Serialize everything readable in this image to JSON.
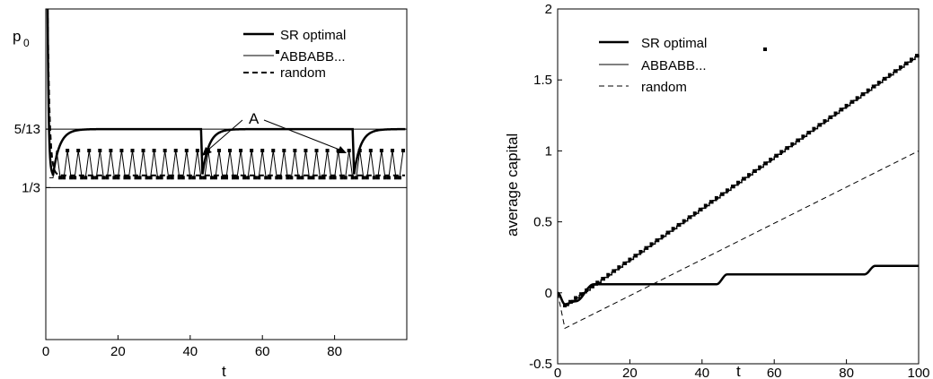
{
  "chart_data": [
    {
      "type": "line",
      "ylabel": "p",
      "ylabel_sub": "0",
      "xlabel": "t",
      "xlim": [
        0,
        100
      ],
      "ylim": [
        0.2,
        0.49
      ],
      "x_ticks": [
        0,
        20,
        40,
        60,
        80
      ],
      "y_ticks": [
        {
          "value": 0.3333,
          "label": "1/3"
        },
        {
          "value": 0.3846,
          "label": "5/13"
        }
      ],
      "reference_lines": [
        0.3333,
        0.3846
      ],
      "legend": [
        "SR optimal",
        "ABBABB...",
        "random"
      ],
      "legend_position": "top-right",
      "annotation": {
        "text": "A",
        "points_x": [
          43,
          85
        ]
      },
      "series": [
        {
          "name": "SR optimal",
          "style": "thick solid",
          "description_values": {
            "start": 0.49,
            "dip_min": 0.344,
            "plateau": 0.3846,
            "drop_times": [
              43,
              85
            ],
            "drop_to": 0.345
          }
        },
        {
          "name": "ABBABB...",
          "style": "thin solid with square markers",
          "description_values": {
            "upper": 0.3658,
            "lower": 0.342,
            "period": 3
          }
        },
        {
          "name": "random",
          "style": "dashed",
          "description_values": {
            "start": 0.49,
            "settle": 0.344
          }
        }
      ]
    },
    {
      "type": "line",
      "ylabel": "average capital",
      "xlabel": "t",
      "xlim": [
        0,
        100
      ],
      "ylim": [
        -0.5,
        2
      ],
      "x_ticks": [
        0,
        20,
        40,
        60,
        80,
        100
      ],
      "y_ticks": [
        -0.5,
        0,
        0.5,
        1,
        1.5,
        2
      ],
      "legend": [
        "SR optimal",
        "ABBABB...",
        "random"
      ],
      "legend_position": "top-left",
      "series": [
        {
          "name": "SR optimal",
          "x": [
            0,
            2,
            5,
            10,
            44,
            47,
            85,
            88,
            100
          ],
          "y": [
            0,
            -0.08,
            -0.06,
            0.06,
            0.06,
            0.13,
            0.13,
            0.19,
            0.19
          ]
        },
        {
          "name": "ABBABB...",
          "x": [
            0,
            2,
            100
          ],
          "y": [
            0,
            -0.09,
            1.68
          ]
        },
        {
          "name": "random",
          "x": [
            0,
            2,
            100
          ],
          "y": [
            0,
            -0.25,
            1.0
          ]
        }
      ]
    }
  ]
}
